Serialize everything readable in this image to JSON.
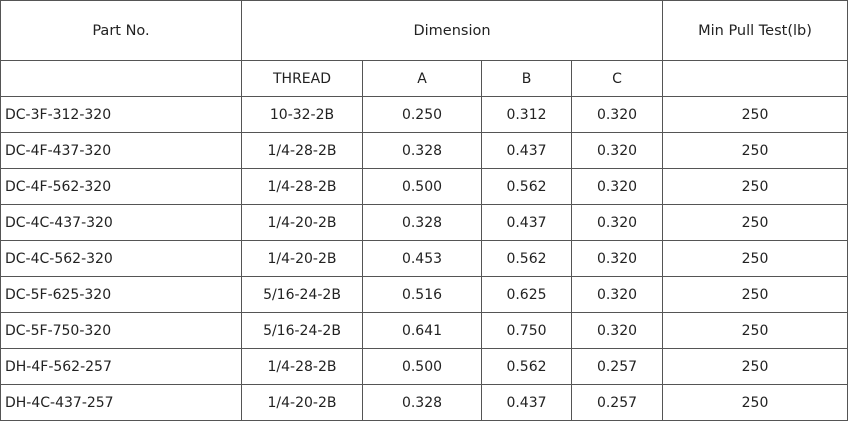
{
  "table": {
    "header": {
      "part_no": "Part No.",
      "dimension": "Dimension",
      "min_pull": "Min Pull Test(lb)"
    },
    "subheader": {
      "part_no": "",
      "thread": "THREAD",
      "a": "A",
      "b": "B",
      "c": "C",
      "min_pull": ""
    },
    "rows": [
      {
        "part_no": "DC-3F-312-320",
        "thread": "10-32-2B",
        "a": "0.250",
        "b": "0.312",
        "c": "0.320",
        "min_pull": "250"
      },
      {
        "part_no": "DC-4F-437-320",
        "thread": "1/4-28-2B",
        "a": "0.328",
        "b": "0.437",
        "c": "0.320",
        "min_pull": "250"
      },
      {
        "part_no": "DC-4F-562-320",
        "thread": "1/4-28-2B",
        "a": "0.500",
        "b": "0.562",
        "c": "0.320",
        "min_pull": "250"
      },
      {
        "part_no": "DC-4C-437-320",
        "thread": "1/4-20-2B",
        "a": "0.328",
        "b": "0.437",
        "c": "0.320",
        "min_pull": "250"
      },
      {
        "part_no": "DC-4C-562-320",
        "thread": "1/4-20-2B",
        "a": "0.453",
        "b": "0.562",
        "c": "0.320",
        "min_pull": "250"
      },
      {
        "part_no": "DC-5F-625-320",
        "thread": "5/16-24-2B",
        "a": "0.516",
        "b": "0.625",
        "c": "0.320",
        "min_pull": "250"
      },
      {
        "part_no": "DC-5F-750-320",
        "thread": "5/16-24-2B",
        "a": "0.641",
        "b": "0.750",
        "c": "0.320",
        "min_pull": "250"
      },
      {
        "part_no": "DH-4F-562-257",
        "thread": "1/4-28-2B",
        "a": "0.500",
        "b": "0.562",
        "c": "0.257",
        "min_pull": "250"
      },
      {
        "part_no": "DH-4C-437-257",
        "thread": "1/4-20-2B",
        "a": "0.328",
        "b": "0.437",
        "c": "0.257",
        "min_pull": "250"
      }
    ]
  }
}
